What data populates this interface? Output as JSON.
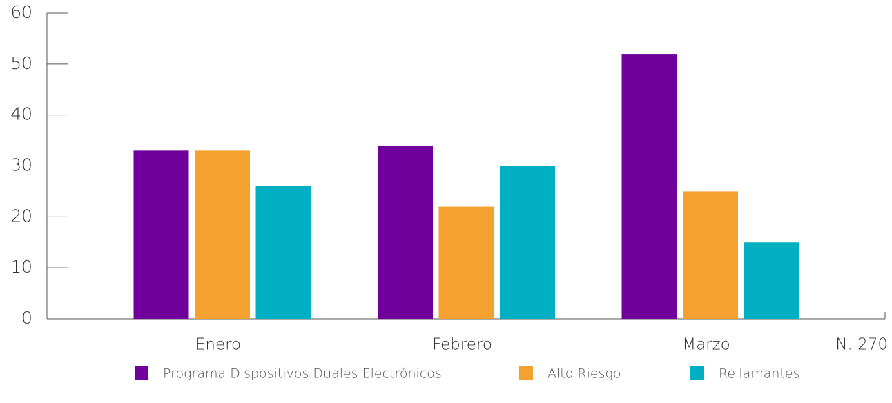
{
  "chart_data": {
    "type": "bar",
    "categories": [
      "Enero",
      "Febrero",
      "Marzo"
    ],
    "series": [
      {
        "name": "Programa Dispositivos Duales Electrónicos",
        "color": "#6f009c",
        "values": [
          33,
          34,
          52
        ]
      },
      {
        "name": "Alto Riesgo",
        "color": "#f5a12f",
        "values": [
          33,
          22,
          25
        ]
      },
      {
        "name": "Rellamantes",
        "color": "#00afc1",
        "values": [
          26,
          30,
          15
        ]
      }
    ],
    "ylim": [
      0,
      60
    ],
    "yticks": [
      0,
      10,
      20,
      30,
      40,
      50,
      60
    ],
    "annotation": "N. 270",
    "legend": "bottom"
  }
}
